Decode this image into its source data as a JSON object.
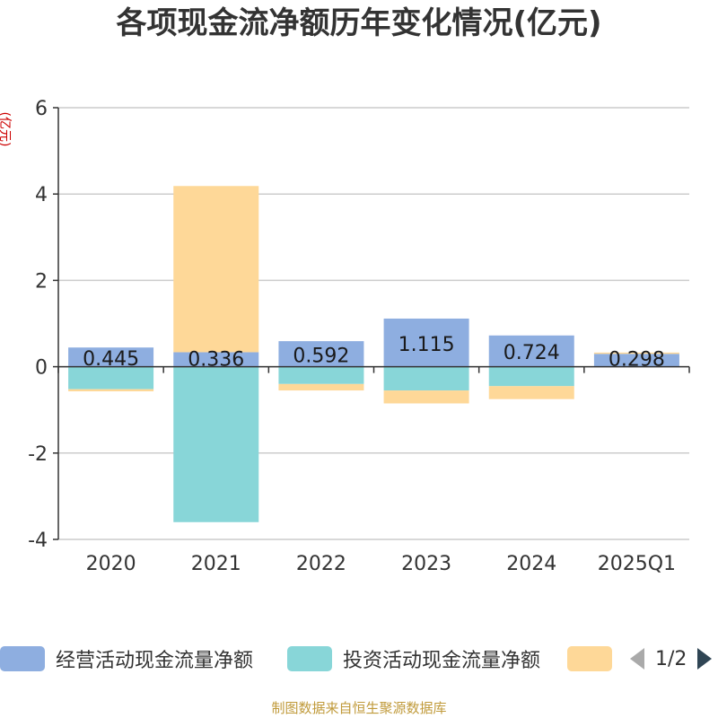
{
  "chart_data": {
    "type": "bar",
    "stacked": true,
    "title": "各项现金流净额历年变化情况(亿元)",
    "ylabel": "(亿元)",
    "ylim": [
      -4,
      6
    ],
    "yticks": [
      -4,
      -2,
      0,
      2,
      4,
      6
    ],
    "categories": [
      "2020",
      "2021",
      "2022",
      "2023",
      "2024",
      "2025Q1"
    ],
    "series": [
      {
        "name": "经营活动现金流量净额",
        "color": "#8eaee0",
        "values": [
          0.445,
          0.336,
          0.592,
          1.115,
          0.724,
          0.298
        ],
        "show_labels": true
      },
      {
        "name": "投资活动现金流量净额",
        "color": "#88d6d8",
        "values": [
          -0.52,
          -3.6,
          -0.4,
          -0.55,
          -0.45,
          0.0
        ],
        "show_labels": false
      },
      {
        "name": "",
        "color": "#fed898",
        "values": [
          -0.05,
          3.85,
          -0.15,
          -0.3,
          -0.3,
          0.03
        ],
        "show_labels": false
      }
    ],
    "grid": true,
    "legend_position": "bottom"
  },
  "legend": {
    "items": [
      {
        "label": "经营活动现金流量净额",
        "color": "#8eaee0"
      },
      {
        "label": "投资活动现金流量净额",
        "color": "#88d6d8"
      },
      {
        "label": "",
        "color": "#fed898"
      }
    ],
    "page_text": "1/2",
    "prev_icon": "triangle-left-icon",
    "next_icon": "triangle-right-icon"
  },
  "footer": {
    "source": "制图数据来自恒生聚源数据库"
  }
}
